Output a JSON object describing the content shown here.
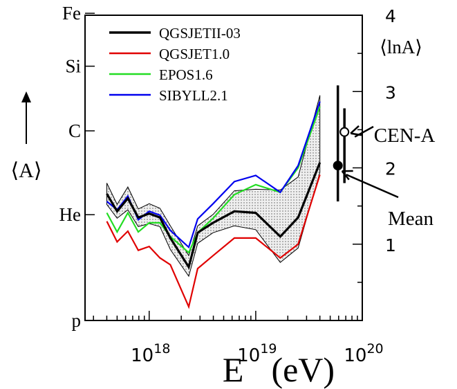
{
  "chart_data": {
    "type": "line",
    "xlabel": "E (eV)",
    "xlabel_parts": [
      "E",
      "(eV)"
    ],
    "x_scale": "log",
    "xlim": [
      2.5e+17,
      1e+20
    ],
    "x_ticks": [
      {
        "value": 1e+18,
        "base": "10",
        "exp": "18"
      },
      {
        "value": 1e+19,
        "base": "10",
        "exp": "19"
      },
      {
        "value": 1e+20,
        "base": "10",
        "exp": "20"
      }
    ],
    "ylim": [
      0,
      4
    ],
    "left_axis": {
      "label": "⟨A⟩",
      "arrow": "up",
      "ticks": [
        {
          "value": 0,
          "label": "p"
        },
        {
          "value": 1.3863,
          "label": "He"
        },
        {
          "value": 2.4849,
          "label": "C"
        },
        {
          "value": 3.3322,
          "label": "Si"
        },
        {
          "value": 4.0254,
          "label": "Fe"
        }
      ]
    },
    "right_axis": {
      "label": "⟨lnA⟩",
      "ticks": [
        {
          "value": 1,
          "label": "1"
        },
        {
          "value": 2,
          "label": "2"
        },
        {
          "value": 3,
          "label": "3"
        },
        {
          "value": 4,
          "label": "4"
        }
      ]
    },
    "legend_position": "top-left",
    "x": [
      4e+17,
      5e+17,
      6.3e+17,
      7.9e+17,
      1e+18,
      1.26e+18,
      1.58e+18,
      2.35e+18,
      2.85e+18,
      3.98e+18,
      6.3e+18,
      1e+19,
      1.7e+19,
      2.5e+19,
      4e+19
    ],
    "series": [
      {
        "name": "QGSJETII-03",
        "color": "#000000",
        "stroke_width": 3.2,
        "values": [
          1.66,
          1.43,
          1.6,
          1.35,
          1.4,
          1.35,
          1.08,
          0.7,
          1.15,
          1.28,
          1.43,
          1.41,
          1.1,
          1.35,
          2.07
        ]
      },
      {
        "name": "QGSJET1.0",
        "color": "#e00000",
        "stroke_width": 2.2,
        "values": [
          1.3,
          1.03,
          1.17,
          0.92,
          0.97,
          0.82,
          0.73,
          0.18,
          0.68,
          0.85,
          1.08,
          1.08,
          0.82,
          1.0,
          1.91
        ]
      },
      {
        "name": "EPOS1.6",
        "color": "#22dd22",
        "stroke_width": 2.2,
        "values": [
          1.41,
          1.16,
          1.41,
          1.16,
          1.28,
          1.28,
          1.1,
          0.89,
          1.15,
          1.34,
          1.65,
          1.78,
          1.68,
          2.0,
          2.8
        ]
      },
      {
        "name": "SIBYLL2.1",
        "color": "#0000ee",
        "stroke_width": 2.2,
        "values": [
          1.56,
          1.45,
          1.63,
          1.32,
          1.43,
          1.38,
          1.18,
          0.96,
          1.33,
          1.53,
          1.82,
          1.9,
          1.68,
          2.03,
          2.87
        ]
      }
    ],
    "band": {
      "x": [
        4e+17,
        5e+17,
        6.3e+17,
        7.9e+17,
        1e+18,
        1.26e+18,
        1.58e+18,
        2.35e+18,
        2.85e+18,
        3.98e+18,
        6.3e+18,
        1e+19,
        1.7e+19,
        2.5e+19,
        4e+19
      ],
      "upper": [
        1.8,
        1.52,
        1.75,
        1.46,
        1.53,
        1.47,
        1.24,
        0.85,
        1.24,
        1.39,
        1.7,
        1.72,
        1.71,
        1.88,
        2.95
      ],
      "lower": [
        1.52,
        1.34,
        1.45,
        1.23,
        1.27,
        1.23,
        0.93,
        0.58,
        1.01,
        1.15,
        1.24,
        1.19,
        0.76,
        0.95,
        1.94
      ]
    },
    "points": [
      {
        "label": "CEN-A",
        "x": 6.8e+19,
        "y": 2.47,
        "marker": "open-circle",
        "bar_low": 1.8,
        "bar_high": 2.78,
        "arrow_from": "right"
      },
      {
        "label": "Mean",
        "x": 5.9e+19,
        "y": 2.03,
        "marker": "filled-circle",
        "bar_low": 1.56,
        "bar_high": 3.08,
        "arrow_from": "below-right"
      }
    ],
    "grid": false
  }
}
